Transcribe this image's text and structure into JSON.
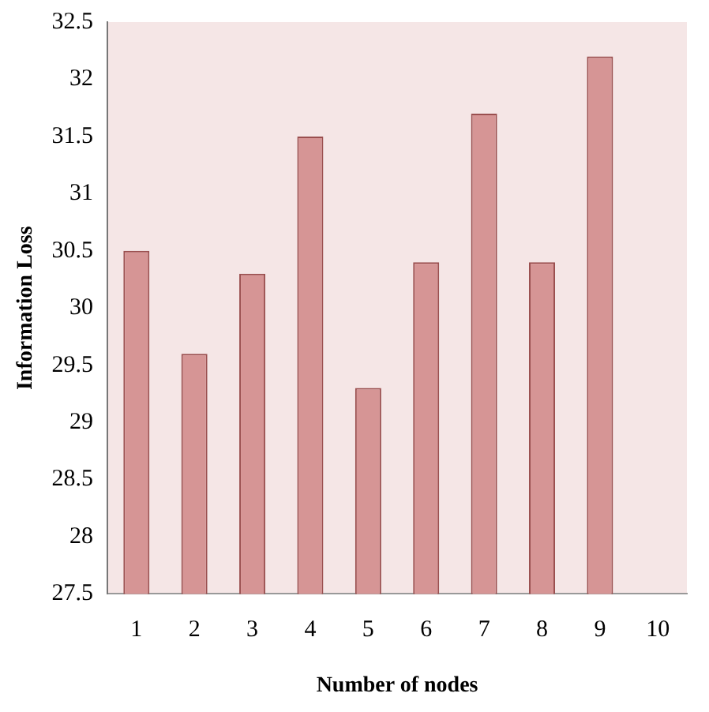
{
  "chart_data": {
    "type": "bar",
    "xlabel": "Number of nodes",
    "ylabel": "Information Loss",
    "categories": [
      "1",
      "2",
      "3",
      "4",
      "5",
      "6",
      "7",
      "8",
      "9",
      "10"
    ],
    "values": [
      30.5,
      29.6,
      30.3,
      31.5,
      29.3,
      30.4,
      31.7,
      30.4,
      32.2,
      null
    ],
    "color": "#d69595",
    "ylim": [
      27.5,
      32.5
    ],
    "yticks": [
      27.5,
      28,
      28.5,
      29,
      29.5,
      30,
      30.5,
      31,
      31.5,
      32,
      32.5
    ],
    "grid": false,
    "legend": false
  }
}
